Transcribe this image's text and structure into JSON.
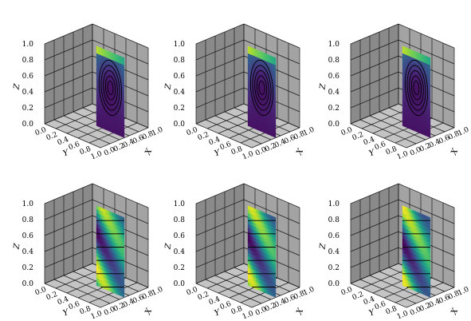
{
  "chart_data": {
    "type": "surface3d-grid",
    "panels": [
      {
        "row": 0,
        "col": 0,
        "field": "stream",
        "xlabel": "X",
        "ylabel": "Y",
        "zlabel": "Z",
        "xticks": [
          "0.0",
          "0.2",
          "0.4",
          "0.6",
          "0.8",
          "1.0"
        ],
        "yticks": [
          "0.0",
          "0.2",
          "0.4",
          "0.6",
          "0.8",
          "1.0"
        ],
        "zticks": [
          "0.0",
          "0.2",
          "0.4",
          "0.6",
          "0.8",
          "1.0"
        ],
        "xlim": [
          0,
          1
        ],
        "ylim": [
          0,
          1
        ],
        "zlim": [
          0,
          1
        ],
        "grid": true
      },
      {
        "row": 0,
        "col": 1,
        "field": "stream",
        "xlabel": "X",
        "ylabel": "Y",
        "zlabel": "Z",
        "xticks": [
          "0.0",
          "0.2",
          "0.4",
          "0.6",
          "0.8",
          "1.0"
        ],
        "yticks": [
          "0.0",
          "0.2",
          "0.4",
          "0.6",
          "0.8",
          "1.0"
        ],
        "zticks": [
          "0.0",
          "0.2",
          "0.4",
          "0.6",
          "0.8",
          "1.0"
        ],
        "xlim": [
          0,
          1
        ],
        "ylim": [
          0,
          1
        ],
        "zlim": [
          0,
          1
        ],
        "grid": true
      },
      {
        "row": 0,
        "col": 2,
        "field": "stream",
        "xlabel": "X",
        "ylabel": "Y",
        "zlabel": "Z",
        "xticks": [
          "0.0",
          "0.2",
          "0.4",
          "0.6",
          "0.8",
          "1.0"
        ],
        "yticks": [
          "0.0",
          "0.2",
          "0.4",
          "0.6",
          "0.8",
          "1.0"
        ],
        "zticks": [
          "0.0",
          "0.2",
          "0.4",
          "0.6",
          "0.8",
          "1.0"
        ],
        "xlim": [
          0,
          1
        ],
        "ylim": [
          0,
          1
        ],
        "zlim": [
          0,
          1
        ],
        "grid": true
      },
      {
        "row": 1,
        "col": 0,
        "field": "wave",
        "xlabel": "X",
        "ylabel": "Y",
        "zlabel": "Z",
        "xticks": [
          "0.0",
          "0.2",
          "0.4",
          "0.6",
          "0.8",
          "1.0"
        ],
        "yticks": [
          "0.0",
          "0.2",
          "0.4",
          "0.6",
          "0.8",
          "1.0"
        ],
        "zticks": [
          "0.0",
          "0.2",
          "0.4",
          "0.6",
          "0.8",
          "1.0"
        ],
        "xlim": [
          0,
          1
        ],
        "ylim": [
          0,
          1
        ],
        "zlim": [
          0,
          1
        ],
        "grid": true
      },
      {
        "row": 1,
        "col": 1,
        "field": "wave",
        "xlabel": "X",
        "ylabel": "Y",
        "zlabel": "Z",
        "xticks": [
          "0.0",
          "0.2",
          "0.4",
          "0.6",
          "0.8",
          "1.0"
        ],
        "yticks": [
          "0.0",
          "0.2",
          "0.4",
          "0.6",
          "0.8",
          "1.0"
        ],
        "zticks": [
          "0.0",
          "0.2",
          "0.4",
          "0.6",
          "0.8",
          "1.0"
        ],
        "xlim": [
          0,
          1
        ],
        "ylim": [
          0,
          1
        ],
        "zlim": [
          0,
          1
        ],
        "grid": true
      },
      {
        "row": 1,
        "col": 2,
        "field": "wave",
        "xlabel": "X",
        "ylabel": "Y",
        "zlabel": "Z",
        "xticks": [
          "0.0",
          "0.2",
          "0.4",
          "0.6",
          "0.8",
          "1.0"
        ],
        "yticks": [
          "0.0",
          "0.2",
          "0.4",
          "0.6",
          "0.8",
          "1.0"
        ],
        "zticks": [
          "0.0",
          "0.2",
          "0.4",
          "0.6",
          "0.8",
          "1.0"
        ],
        "xlim": [
          0,
          1
        ],
        "ylim": [
          0,
          1
        ],
        "zlim": [
          0,
          1
        ],
        "grid": true
      }
    ],
    "colormap": "viridis",
    "pane_colors": {
      "back": "#8a8a8a",
      "side": "#a3a3a3",
      "floor": "#c4c4c4"
    }
  }
}
